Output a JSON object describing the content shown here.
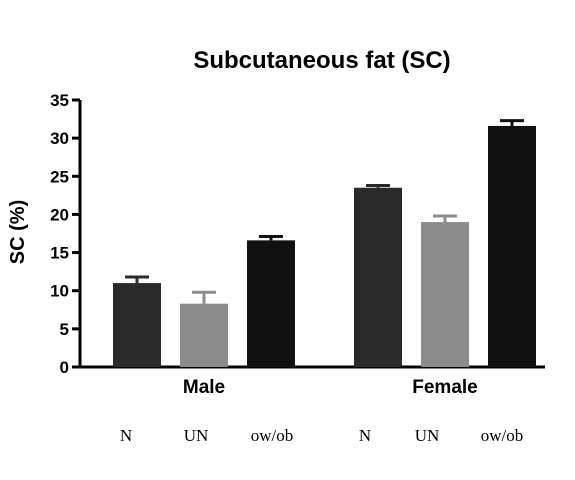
{
  "chart_data": {
    "type": "bar",
    "title": "Subcutaneous fat (SC)",
    "xlabel": "",
    "ylabel": "SC (%)",
    "ylim": [
      0,
      35
    ],
    "yticks": [
      "0",
      "5",
      "10",
      "15",
      "20",
      "25",
      "30",
      "35"
    ],
    "grid": false,
    "groups": [
      {
        "name": "Male",
        "bars": [
          {
            "label": "N",
            "value": 11.0,
            "error": 0.8,
            "color": "#2a2a2a"
          },
          {
            "label": "UN",
            "value": 8.3,
            "error": 1.5,
            "color": "#8c8c8c"
          },
          {
            "label": "ow/ob",
            "value": 16.6,
            "error": 0.5,
            "color": "#111111"
          }
        ]
      },
      {
        "name": "Female",
        "bars": [
          {
            "label": "N",
            "value": 23.5,
            "error": 0.3,
            "color": "#2a2a2a"
          },
          {
            "label": "UN",
            "value": 19.0,
            "error": 0.8,
            "color": "#8c8c8c"
          },
          {
            "label": "ow/ob",
            "value": 31.6,
            "error": 0.7,
            "color": "#111111"
          }
        ]
      }
    ]
  }
}
